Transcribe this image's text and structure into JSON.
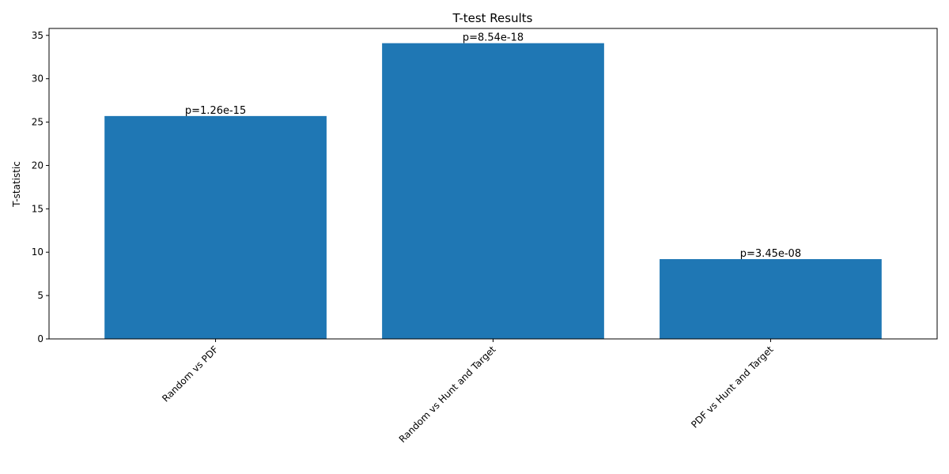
{
  "chart_data": {
    "type": "bar",
    "title": "T-test Results",
    "xlabel": "",
    "ylabel": "T-statistic",
    "categories": [
      "Random vs PDF",
      "Random vs Hunt and Target",
      "PDF vs Hunt and Target"
    ],
    "values": [
      25.7,
      34.1,
      9.2
    ],
    "annotations": [
      "p=1.26e-15",
      "p=8.54e-18",
      "p=3.45e-08"
    ],
    "ylim": [
      0,
      35.8
    ],
    "yticks": [
      0,
      5,
      10,
      15,
      20,
      25,
      30,
      35
    ],
    "bar_color": "#1f77b4",
    "grid": false,
    "legend": "none"
  }
}
